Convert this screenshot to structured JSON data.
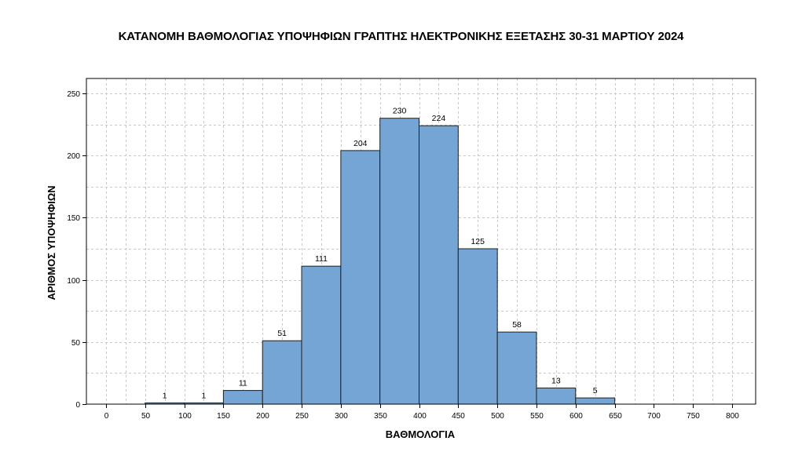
{
  "chart_data": {
    "type": "bar",
    "title": "ΚΑΤΑΝΟΜΗ ΒΑΘΜΟΛΟΓΙΑΣ ΥΠΟΨΗΦΙΩΝ ΓΡΑΠΤΗΣ ΗΛΕΚΤΡΟΝΙΚΗΣ ΕΞΕΤΑΣΗΣ 30-31 ΜΑΡΤΙΟΥ 2024",
    "xlabel": "ΒΑΘΜΟΛΟΓΙΑ",
    "ylabel": "ΑΡΙΘΜΟΣ ΥΠΟΨΗΦΙΩΝ",
    "bins": [
      {
        "from": 50,
        "to": 100,
        "value": 1
      },
      {
        "from": 100,
        "to": 150,
        "value": 1
      },
      {
        "from": 150,
        "to": 200,
        "value": 11
      },
      {
        "from": 200,
        "to": 250,
        "value": 51
      },
      {
        "from": 250,
        "to": 300,
        "value": 111
      },
      {
        "from": 300,
        "to": 350,
        "value": 204
      },
      {
        "from": 350,
        "to": 400,
        "value": 230
      },
      {
        "from": 400,
        "to": 450,
        "value": 224
      },
      {
        "from": 450,
        "to": 500,
        "value": 125
      },
      {
        "from": 500,
        "to": 550,
        "value": 58
      },
      {
        "from": 550,
        "to": 600,
        "value": 13
      },
      {
        "from": 600,
        "to": 650,
        "value": 5
      }
    ],
    "xlim": [
      -25,
      830
    ],
    "ylim": [
      0,
      262
    ],
    "x_ticks": [
      0,
      50,
      100,
      150,
      200,
      250,
      300,
      350,
      400,
      450,
      500,
      550,
      600,
      650,
      700,
      750,
      800
    ],
    "y_ticks": [
      0,
      50,
      100,
      150,
      200,
      250
    ],
    "grid": true,
    "bar_color": "#75a5d4",
    "bar_edge_color": "#1f1f1f"
  }
}
